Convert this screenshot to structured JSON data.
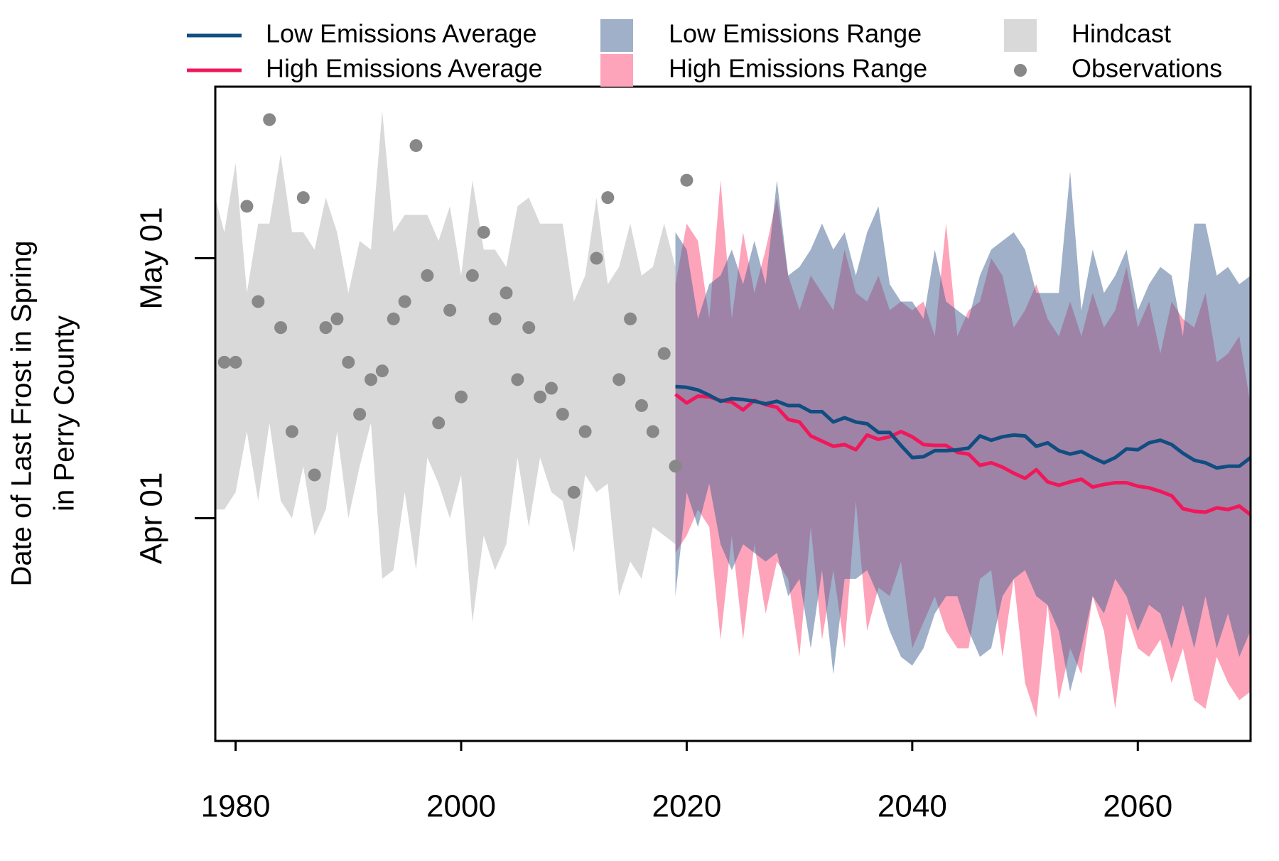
{
  "chart_data": {
    "type": "line",
    "ylabel": [
      "Date of Last Frost in Spring",
      "in Perry County"
    ],
    "xlim": [
      1978.2,
      2070
    ],
    "xticks": [
      1980,
      2000,
      2020,
      2040,
      2060
    ],
    "ylim": [
      65.3,
      140.8
    ],
    "yticks": [
      {
        "value": 91,
        "label": "Apr 01"
      },
      {
        "value": 121,
        "label": "May 01"
      }
    ],
    "grid": false,
    "series": [
      {
        "name": "Low Emissions Average",
        "kind": "line",
        "color": "#104d80",
        "x": [
          2019,
          2020,
          2021,
          2022,
          2023,
          2024,
          2025,
          2026,
          2027,
          2028,
          2029,
          2030,
          2031,
          2032,
          2033,
          2034,
          2035,
          2036,
          2037,
          2038,
          2039,
          2040,
          2041,
          2042,
          2043,
          2044,
          2045,
          2046,
          2047,
          2048,
          2049,
          2050,
          2051,
          2052,
          2053,
          2054,
          2055,
          2056,
          2057,
          2058,
          2059,
          2060,
          2061,
          2062,
          2063,
          2064,
          2065,
          2066,
          2067,
          2068,
          2069,
          2070
        ],
        "values": [
          106.2,
          106.1,
          105.8,
          105.2,
          104.5,
          104.8,
          104.7,
          104.5,
          104.2,
          104.5,
          104.0,
          104.0,
          103.3,
          103.3,
          102.1,
          102.6,
          102.1,
          101.9,
          100.9,
          100.9,
          99.4,
          98.0,
          98.1,
          98.8,
          98.8,
          98.9,
          99.1,
          100.5,
          100.0,
          100.4,
          100.6,
          100.5,
          99.3,
          99.7,
          98.8,
          98.4,
          98.7,
          98.0,
          97.4,
          98.0,
          99.0,
          98.9,
          99.7,
          100.0,
          99.5,
          98.5,
          97.7,
          97.4,
          96.8,
          97.0,
          97.0,
          98.0
        ]
      },
      {
        "name": "High Emissions Average",
        "kind": "line",
        "color": "#f0185a",
        "x": [
          2019,
          2020,
          2021,
          2022,
          2023,
          2024,
          2025,
          2026,
          2027,
          2028,
          2029,
          2030,
          2031,
          2032,
          2033,
          2034,
          2035,
          2036,
          2037,
          2038,
          2039,
          2040,
          2041,
          2042,
          2043,
          2044,
          2045,
          2046,
          2047,
          2048,
          2049,
          2050,
          2051,
          2052,
          2053,
          2054,
          2055,
          2056,
          2057,
          2058,
          2059,
          2060,
          2061,
          2062,
          2063,
          2064,
          2065,
          2066,
          2067,
          2068,
          2069,
          2070
        ],
        "values": [
          105.3,
          104.3,
          105.1,
          105.0,
          104.6,
          104.4,
          103.5,
          104.6,
          104.1,
          103.8,
          102.4,
          102.1,
          100.5,
          99.9,
          99.3,
          99.5,
          98.9,
          100.6,
          100.1,
          100.4,
          101.0,
          100.4,
          99.5,
          99.4,
          99.4,
          98.6,
          98.4,
          97.1,
          97.4,
          96.9,
          96.2,
          95.6,
          96.6,
          95.2,
          94.8,
          95.2,
          95.5,
          94.6,
          94.9,
          95.1,
          95.1,
          94.7,
          94.5,
          94.1,
          93.6,
          92.1,
          91.8,
          91.7,
          92.2,
          92.0,
          92.4,
          91.4
        ]
      },
      {
        "name": "Low Emissions Range",
        "kind": "range",
        "color": "#3f6292",
        "x": [
          2019,
          2020,
          2021,
          2022,
          2023,
          2024,
          2025,
          2026,
          2027,
          2028,
          2029,
          2030,
          2031,
          2032,
          2033,
          2034,
          2035,
          2036,
          2037,
          2038,
          2039,
          2040,
          2041,
          2042,
          2043,
          2044,
          2045,
          2046,
          2047,
          2048,
          2049,
          2050,
          2051,
          2052,
          2053,
          2054,
          2055,
          2056,
          2057,
          2058,
          2059,
          2060,
          2061,
          2062,
          2063,
          2064,
          2065,
          2066,
          2067,
          2068,
          2069,
          2070
        ],
        "upper": [
          124,
          122,
          114,
          118,
          119,
          122,
          118,
          123,
          118,
          130,
          119,
          120,
          122,
          125,
          122,
          124,
          119,
          124,
          127,
          118,
          116,
          116,
          114,
          122,
          116,
          115,
          114,
          119,
          122,
          123,
          124,
          122,
          117,
          117,
          117,
          131,
          115,
          122,
          117,
          119,
          122,
          115,
          118,
          120,
          119,
          112,
          125,
          125,
          119,
          120,
          118,
          119
        ],
        "lower": [
          82,
          94,
          90,
          95,
          88,
          85,
          88,
          87,
          86,
          87,
          82,
          84,
          76,
          85,
          73,
          84,
          84,
          85,
          82,
          78,
          75,
          74,
          76,
          80,
          82,
          82,
          78,
          75,
          76,
          82,
          84,
          85,
          82,
          81,
          78,
          71,
          76,
          82,
          80,
          84,
          82,
          78,
          81,
          80,
          76,
          81,
          76,
          82,
          76,
          80,
          75,
          78
        ]
      },
      {
        "name": "High Emissions Range",
        "kind": "range",
        "color": "#fda4ba",
        "x": [
          2019,
          2020,
          2021,
          2022,
          2023,
          2024,
          2025,
          2026,
          2027,
          2028,
          2029,
          2030,
          2031,
          2032,
          2033,
          2034,
          2035,
          2036,
          2037,
          2038,
          2039,
          2040,
          2041,
          2042,
          2043,
          2044,
          2045,
          2046,
          2047,
          2048,
          2049,
          2050,
          2051,
          2052,
          2053,
          2054,
          2055,
          2056,
          2057,
          2058,
          2059,
          2060,
          2061,
          2062,
          2063,
          2064,
          2065,
          2066,
          2067,
          2068,
          2069,
          2070
        ],
        "upper": [
          118,
          125,
          123,
          114,
          130,
          114,
          124,
          117,
          122,
          128,
          119,
          115,
          119,
          117,
          115,
          122,
          117,
          116,
          119,
          115,
          116,
          115,
          116,
          112,
          125,
          112,
          115,
          116,
          121,
          119,
          113,
          115,
          118,
          114,
          112,
          116,
          112,
          117,
          113,
          115,
          120,
          113,
          116,
          110,
          116,
          114,
          113,
          117,
          109,
          110,
          112,
          104
        ],
        "lower": [
          87,
          89,
          92,
          90,
          77,
          89,
          77,
          88,
          80,
          86,
          84,
          75,
          90,
          77,
          85,
          76,
          93,
          78,
          83,
          82,
          86,
          76,
          79,
          82,
          78,
          76,
          76,
          84,
          85,
          75,
          84,
          72,
          68,
          81,
          70,
          76,
          73,
          82,
          78,
          69,
          80,
          76,
          75,
          77,
          72,
          76,
          70,
          69,
          75,
          72,
          70,
          71
        ]
      },
      {
        "name": "Hindcast",
        "kind": "range",
        "color": "#d9d9d9",
        "x": [
          1978,
          1979,
          1980,
          1981,
          1982,
          1983,
          1984,
          1985,
          1986,
          1987,
          1988,
          1989,
          1990,
          1991,
          1992,
          1993,
          1994,
          1995,
          1996,
          1997,
          1998,
          1999,
          2000,
          2001,
          2002,
          2003,
          2004,
          2005,
          2006,
          2007,
          2008,
          2009,
          2010,
          2011,
          2012,
          2013,
          2014,
          2015,
          2016,
          2017,
          2018,
          2019
        ],
        "upper": [
          129,
          124,
          132,
          117,
          125,
          125,
          133,
          124,
          124,
          122,
          128,
          124,
          117,
          123,
          122,
          138,
          124,
          126,
          126,
          126,
          123,
          127,
          119,
          130,
          122,
          122,
          120,
          127,
          128,
          125,
          125,
          125,
          116,
          119,
          128,
          118,
          120,
          125,
          119,
          120,
          125,
          120
        ],
        "lower": [
          92,
          92,
          94,
          101,
          93,
          102,
          93,
          91,
          97,
          89,
          92,
          101,
          91,
          97,
          102,
          84,
          85,
          94,
          85,
          98,
          95,
          91,
          96,
          79,
          89,
          85,
          88,
          98,
          90,
          98,
          94,
          93,
          87,
          96,
          94,
          95,
          82,
          86,
          84,
          90,
          89,
          88
        ]
      },
      {
        "name": "Observations",
        "kind": "points",
        "color": "#888888",
        "x": [
          1979,
          1980,
          1981,
          1982,
          1983,
          1984,
          1985,
          1986,
          1987,
          1988,
          1989,
          1990,
          1991,
          1992,
          1993,
          1994,
          1995,
          1996,
          1997,
          1998,
          1999,
          2000,
          2001,
          2002,
          2003,
          2004,
          2005,
          2006,
          2007,
          2008,
          2009,
          2010,
          2011,
          2012,
          2013,
          2014,
          2015,
          2016,
          2017,
          2018,
          2019,
          2020
        ],
        "values": [
          109,
          109,
          127,
          116,
          137,
          113,
          101,
          128,
          96,
          113,
          114,
          109,
          103,
          107,
          108,
          114,
          116,
          134,
          119,
          102,
          115,
          105,
          119,
          124,
          114,
          117,
          107,
          113,
          105,
          106,
          103,
          94,
          101,
          121,
          128,
          107,
          114,
          104,
          101,
          110,
          97,
          130
        ]
      }
    ]
  }
}
